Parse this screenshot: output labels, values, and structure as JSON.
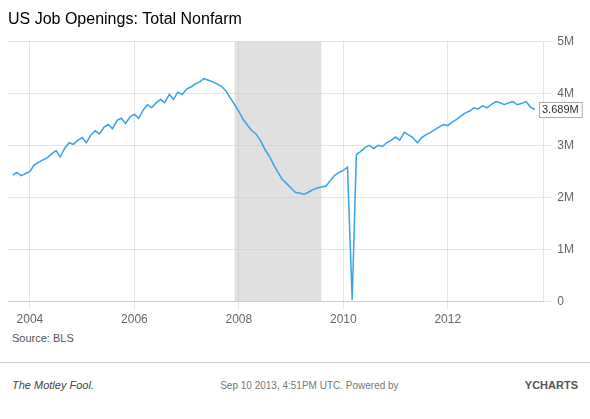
{
  "chart_data": {
    "type": "line",
    "title": "US Job Openings: Total Nonfarm",
    "x": [
      2003.67,
      2003.75,
      2003.83,
      2003.92,
      2004.0,
      2004.08,
      2004.17,
      2004.25,
      2004.33,
      2004.42,
      2004.5,
      2004.58,
      2004.67,
      2004.75,
      2004.83,
      2004.92,
      2005.0,
      2005.08,
      2005.17,
      2005.25,
      2005.33,
      2005.42,
      2005.5,
      2005.58,
      2005.67,
      2005.75,
      2005.83,
      2005.92,
      2006.0,
      2006.08,
      2006.17,
      2006.25,
      2006.33,
      2006.42,
      2006.5,
      2006.58,
      2006.67,
      2006.75,
      2006.83,
      2006.92,
      2007.0,
      2007.08,
      2007.17,
      2007.25,
      2007.33,
      2007.42,
      2007.5,
      2007.58,
      2007.67,
      2007.75,
      2007.83,
      2007.92,
      2008.0,
      2008.08,
      2008.17,
      2008.25,
      2008.33,
      2008.42,
      2008.5,
      2008.58,
      2008.67,
      2008.75,
      2008.83,
      2008.92,
      2009.0,
      2009.08,
      2009.17,
      2009.25,
      2009.33,
      2009.42,
      2009.5,
      2009.58,
      2009.67,
      2009.75,
      2009.83,
      2009.92,
      2010.0,
      2010.08,
      2010.17,
      2010.25,
      2010.33,
      2010.42,
      2010.5,
      2010.58,
      2010.67,
      2010.75,
      2010.83,
      2010.92,
      2011.0,
      2011.08,
      2011.17,
      2011.25,
      2011.33,
      2011.42,
      2011.5,
      2011.58,
      2011.67,
      2011.75,
      2011.83,
      2011.92,
      2012.0,
      2012.08,
      2012.17,
      2012.25,
      2012.33,
      2012.42,
      2012.5,
      2012.58,
      2012.67,
      2012.75,
      2012.83,
      2012.92,
      2013.0,
      2013.08,
      2013.17,
      2013.25,
      2013.33,
      2013.42,
      2013.5,
      2013.58,
      2013.67
    ],
    "values": [
      2430000,
      2480000,
      2420000,
      2460000,
      2500000,
      2620000,
      2680000,
      2720000,
      2760000,
      2840000,
      2900000,
      2780000,
      2950000,
      3050000,
      3020000,
      3100000,
      3150000,
      3050000,
      3200000,
      3280000,
      3220000,
      3350000,
      3400000,
      3320000,
      3480000,
      3520000,
      3420000,
      3550000,
      3600000,
      3520000,
      3680000,
      3780000,
      3720000,
      3820000,
      3880000,
      3820000,
      3980000,
      3880000,
      4020000,
      3980000,
      4080000,
      4120000,
      4180000,
      4220000,
      4280000,
      4250000,
      4220000,
      4180000,
      4130000,
      4050000,
      3920000,
      3780000,
      3650000,
      3500000,
      3380000,
      3280000,
      3220000,
      3080000,
      2920000,
      2800000,
      2620000,
      2480000,
      2350000,
      2260000,
      2180000,
      2100000,
      2080000,
      2060000,
      2100000,
      2150000,
      2180000,
      2200000,
      2220000,
      2320000,
      2420000,
      2480000,
      2520000,
      2580000,
      30000,
      2820000,
      2880000,
      2960000,
      3000000,
      2940000,
      3000000,
      2980000,
      3050000,
      3100000,
      3160000,
      3100000,
      3250000,
      3200000,
      3150000,
      3050000,
      3150000,
      3200000,
      3250000,
      3300000,
      3350000,
      3400000,
      3380000,
      3440000,
      3500000,
      3560000,
      3620000,
      3660000,
      3720000,
      3700000,
      3760000,
      3720000,
      3780000,
      3840000,
      3820000,
      3780000,
      3820000,
      3840000,
      3780000,
      3810000,
      3840000,
      3740000,
      3689000
    ],
    "xlim": [
      2003.58,
      2013.83
    ],
    "ylim": [
      0,
      5000000
    ],
    "xticks": [
      2004,
      2006,
      2008,
      2010,
      2012
    ],
    "yticks": [
      0,
      {
        "value": 1000000,
        "label": "1M"
      },
      {
        "value": 2000000,
        "label": "2M"
      },
      {
        "value": 3000000,
        "label": "3M"
      },
      {
        "value": 4000000,
        "label": "4M"
      },
      {
        "value": 5000000,
        "label": "5M"
      }
    ],
    "grid": true,
    "spans": [
      {
        "start": 2007.92,
        "end": 2009.58,
        "color": "#cccccc"
      }
    ],
    "annotations": [
      {
        "x": 2013.67,
        "y": 3689000,
        "text": "3.689M"
      }
    ],
    "source": "Source: BLS",
    "footer": [
      "The Motley Fool.",
      "Sep 10 2013, 4:51PM UTC.  Powered by",
      "YCHARTS"
    ]
  }
}
